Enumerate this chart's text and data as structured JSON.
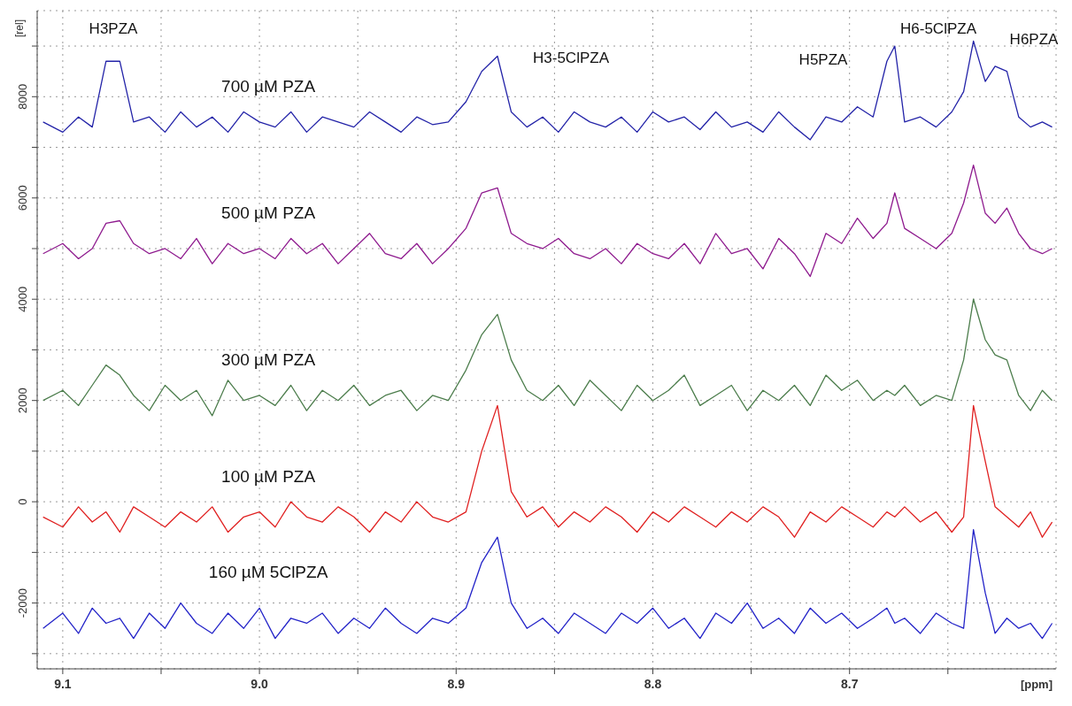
{
  "chart_data": {
    "type": "line",
    "xlabel": "[ppm]",
    "ylabel": "[rel]",
    "xlim": [
      9.113,
      8.595
    ],
    "ylim": [
      -3300,
      9700
    ],
    "xticks": [
      {
        "value": 9.1,
        "label": "9.1"
      },
      {
        "value": 9.05,
        "label": null
      },
      {
        "value": 9.0,
        "label": "9.0"
      },
      {
        "value": 8.95,
        "label": null
      },
      {
        "value": 8.9,
        "label": "8.9"
      },
      {
        "value": 8.85,
        "label": null
      },
      {
        "value": 8.8,
        "label": "8.8"
      },
      {
        "value": 8.75,
        "label": null
      },
      {
        "value": 8.7,
        "label": "8.7"
      },
      {
        "value": 8.65,
        "label": null
      }
    ],
    "yticks": [
      {
        "value": -3000,
        "label": null
      },
      -2000,
      {
        "value": -1000,
        "label": null
      },
      0,
      {
        "value": 1000,
        "label": null
      },
      2000,
      {
        "value": 3000,
        "label": null
      },
      4000,
      {
        "value": 5000,
        "label": null
      },
      6000,
      {
        "value": 7000,
        "label": null
      },
      8000,
      {
        "value": 9000,
        "label": null
      }
    ],
    "grid": true,
    "x": [
      9.11,
      9.1,
      9.092,
      9.085,
      9.078,
      9.071,
      9.064,
      9.056,
      9.048,
      9.04,
      9.032,
      9.024,
      9.016,
      9.008,
      9.0,
      8.992,
      8.984,
      8.976,
      8.968,
      8.96,
      8.952,
      8.944,
      8.936,
      8.928,
      8.92,
      8.912,
      8.904,
      8.895,
      8.887,
      8.879,
      8.872,
      8.864,
      8.856,
      8.848,
      8.84,
      8.832,
      8.824,
      8.816,
      8.808,
      8.8,
      8.792,
      8.784,
      8.776,
      8.768,
      8.76,
      8.752,
      8.744,
      8.736,
      8.728,
      8.72,
      8.712,
      8.704,
      8.696,
      8.688,
      8.681,
      8.677,
      8.672,
      8.664,
      8.656,
      8.648,
      8.642,
      8.637,
      8.631,
      8.626,
      8.62,
      8.614,
      8.608,
      8.602,
      8.597
    ],
    "series": [
      {
        "name": "700 µM PZA",
        "color": "#2323a8",
        "values": [
          7500,
          7300,
          7600,
          7400,
          8700,
          8700,
          7500,
          7600,
          7300,
          7700,
          7400,
          7600,
          7300,
          7700,
          7500,
          7400,
          7700,
          7300,
          7600,
          7500,
          7400,
          7700,
          7500,
          7300,
          7600,
          7450,
          7500,
          7900,
          8500,
          8800,
          7700,
          7400,
          7600,
          7300,
          7700,
          7500,
          7400,
          7600,
          7300,
          7700,
          7500,
          7600,
          7350,
          7700,
          7400,
          7500,
          7300,
          7700,
          7400,
          7150,
          7600,
          7500,
          7800,
          7600,
          8700,
          9000,
          7500,
          7600,
          7400,
          7700,
          8100,
          9100,
          8300,
          8600,
          8500,
          7600,
          7400,
          7500,
          7400
        ]
      },
      {
        "name": "500 µM PZA",
        "color": "#8e1a8e",
        "values": [
          4900,
          5100,
          4800,
          5000,
          5500,
          5550,
          5100,
          4900,
          5000,
          4800,
          5200,
          4700,
          5100,
          4900,
          5000,
          4800,
          5200,
          4900,
          5100,
          4700,
          5000,
          5300,
          4900,
          4800,
          5100,
          4700,
          5000,
          5400,
          6100,
          6200,
          5300,
          5100,
          5000,
          5200,
          4900,
          4800,
          5000,
          4700,
          5100,
          4900,
          4800,
          5100,
          4700,
          5300,
          4900,
          5000,
          4600,
          5200,
          4900,
          4450,
          5300,
          5100,
          5600,
          5200,
          5500,
          6100,
          5400,
          5200,
          5000,
          5300,
          5900,
          6650,
          5700,
          5500,
          5800,
          5300,
          5000,
          4900,
          5000
        ]
      },
      {
        "name": "300 µM PZA",
        "color": "#4c7d4c",
        "values": [
          2000,
          2200,
          1900,
          2300,
          2700,
          2500,
          2100,
          1800,
          2300,
          2000,
          2200,
          1700,
          2400,
          2000,
          2100,
          1900,
          2300,
          1800,
          2200,
          2000,
          2300,
          1900,
          2100,
          2200,
          1800,
          2100,
          2000,
          2600,
          3300,
          3700,
          2800,
          2200,
          2000,
          2300,
          1900,
          2400,
          2100,
          1800,
          2300,
          2000,
          2200,
          2500,
          1900,
          2100,
          2300,
          1800,
          2200,
          2000,
          2300,
          1900,
          2500,
          2200,
          2400,
          2000,
          2200,
          2100,
          2300,
          1900,
          2100,
          2000,
          2800,
          4000,
          3200,
          2900,
          2800,
          2100,
          1800,
          2200,
          2000
        ]
      },
      {
        "name": "100 µM PZA",
        "color": "#e02020",
        "values": [
          -300,
          -500,
          -100,
          -400,
          -200,
          -600,
          -100,
          -300,
          -500,
          -200,
          -400,
          -100,
          -600,
          -300,
          -200,
          -500,
          0,
          -300,
          -400,
          -100,
          -300,
          -600,
          -200,
          -400,
          0,
          -300,
          -400,
          -200,
          1000,
          1900,
          200,
          -300,
          -100,
          -500,
          -200,
          -400,
          -100,
          -300,
          -600,
          -200,
          -400,
          -100,
          -300,
          -500,
          -200,
          -400,
          -100,
          -300,
          -700,
          -200,
          -400,
          -100,
          -300,
          -500,
          -200,
          -300,
          -100,
          -400,
          -200,
          -600,
          -300,
          1900,
          800,
          -100,
          -300,
          -500,
          -200,
          -700,
          -400
        ]
      },
      {
        "name": "160 µM 5ClPZA",
        "color": "#2323c8",
        "values": [
          -2500,
          -2200,
          -2600,
          -2100,
          -2400,
          -2300,
          -2700,
          -2200,
          -2500,
          -2000,
          -2400,
          -2600,
          -2200,
          -2500,
          -2100,
          -2700,
          -2300,
          -2400,
          -2200,
          -2600,
          -2300,
          -2500,
          -2100,
          -2400,
          -2600,
          -2300,
          -2400,
          -2100,
          -1200,
          -700,
          -2000,
          -2500,
          -2300,
          -2600,
          -2200,
          -2400,
          -2600,
          -2200,
          -2400,
          -2100,
          -2500,
          -2300,
          -2700,
          -2200,
          -2400,
          -2000,
          -2500,
          -2300,
          -2600,
          -2100,
          -2400,
          -2200,
          -2500,
          -2300,
          -2100,
          -2400,
          -2300,
          -2600,
          -2200,
          -2400,
          -2500,
          -550,
          -1800,
          -2600,
          -2300,
          -2500,
          -2400,
          -2700,
          -2400
        ]
      }
    ],
    "annotations": [
      "H3PZA",
      "H3-5ClPZA",
      "H5PZA",
      "H6-5ClPZA",
      "H6PZA"
    ]
  }
}
